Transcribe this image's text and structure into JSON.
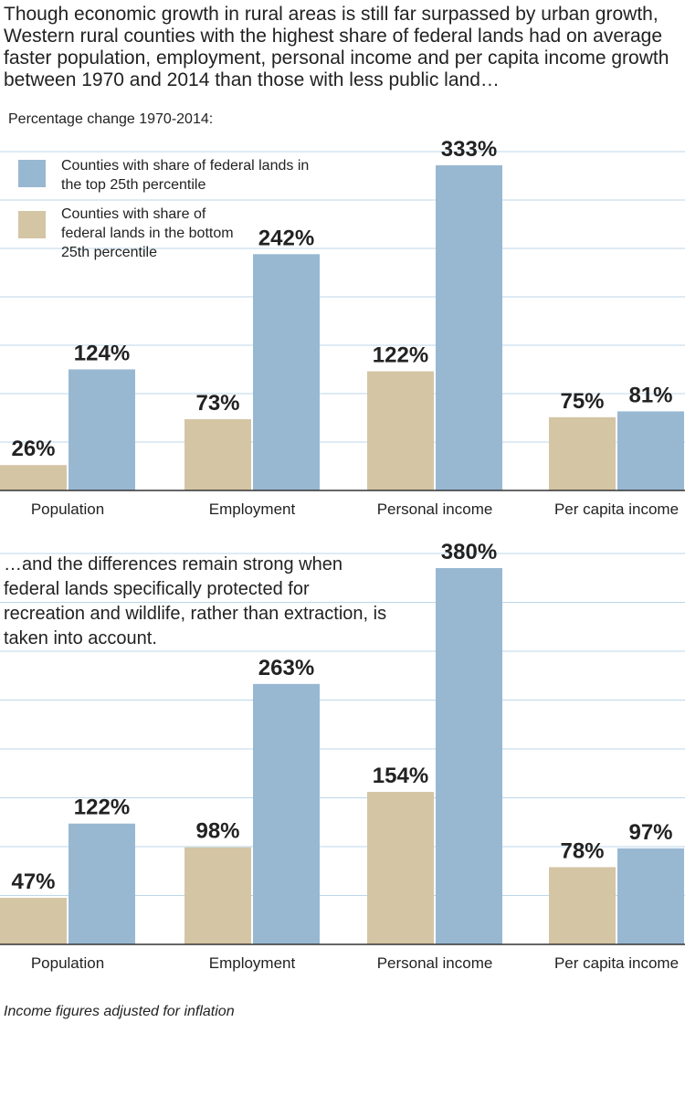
{
  "headline": "Though economic growth in rural areas is still far surpassed by urban growth, Western rural counties with the highest share of federal lands had on average faster population, employment, personal income and per capita income growth between 1970 and 2014 than those with less public land…",
  "subtitle": "Percentage change 1970-2014:",
  "caption2": "…and the differences remain strong when federal lands specifically protected for recreation and wildlife, rather than extraction, is taken into account.",
  "footnote": "Income figures adjusted for inflation",
  "legend": [
    {
      "label": "Counties with share of federal lands in the top 25th percentile",
      "color": "#98b8d2"
    },
    {
      "label": "Counties with share of federal lands in the bottom 25th percentile",
      "color": "#d4c5a4"
    }
  ],
  "colors": {
    "top": "#98b8d2",
    "bottom": "#d4c5a4",
    "grid": "#bcd7e8",
    "axis": "#333333"
  },
  "chart_data": [
    {
      "type": "bar",
      "categories": [
        "Population",
        "Employment",
        "Personal income",
        "Per capita income"
      ],
      "series": [
        {
          "name": "Counties with share of federal lands in the bottom 25th percentile",
          "values": [
            26,
            73,
            122,
            75
          ],
          "labels": [
            "26%",
            "73%",
            "122%",
            "75%"
          ]
        },
        {
          "name": "Counties with share of federal lands in the top 25th percentile",
          "values": [
            124,
            242,
            333,
            81
          ],
          "labels": [
            "124%",
            "242%",
            "333%",
            "81%"
          ]
        }
      ],
      "ylim": [
        0,
        350
      ],
      "grid": true
    },
    {
      "type": "bar",
      "categories": [
        "Population",
        "Employment",
        "Personal income",
        "Per capita income"
      ],
      "series": [
        {
          "name": "Counties with share of federal lands in the bottom 25th percentile",
          "values": [
            47,
            98,
            154,
            78
          ],
          "labels": [
            "47%",
            "98%",
            "154%",
            "78%"
          ]
        },
        {
          "name": "Counties with share of federal lands in the top 25th percentile",
          "values": [
            122,
            263,
            380,
            97
          ],
          "labels": [
            "122%",
            "263%",
            "380%",
            "97%"
          ]
        }
      ],
      "ylim": [
        0,
        400
      ],
      "grid": true
    }
  ]
}
